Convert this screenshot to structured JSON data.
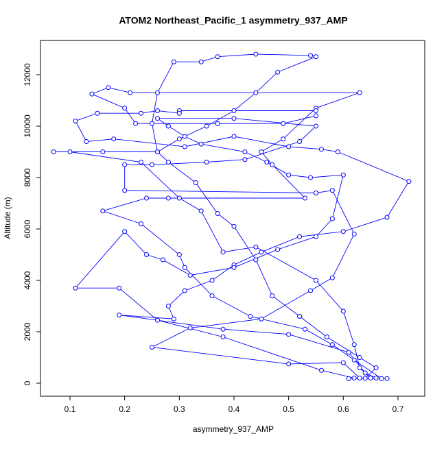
{
  "chart_data": {
    "type": "line",
    "title": "ATOM2 Northeast_Pacific_1 asymmetry_937_AMP",
    "xlabel": "asymmetry_937_AMP",
    "ylabel": "Altitude (m)",
    "color": "#0000ff",
    "marker": "circle",
    "xlim": [
      0.046,
      0.749
    ],
    "ylim": [
      -507,
      13333
    ],
    "xticks": [
      0.1,
      0.2,
      0.3,
      0.4,
      0.5,
      0.6,
      0.7
    ],
    "yticks": [
      0,
      2000,
      4000,
      6000,
      8000,
      10000,
      12000
    ],
    "x": [
      0.61,
      0.64,
      0.66,
      0.63,
      0.57,
      0.52,
      0.47,
      0.44,
      0.4,
      0.37,
      0.33,
      0.28,
      0.26,
      0.25,
      0.26,
      0.29,
      0.34,
      0.37,
      0.44,
      0.54,
      0.55,
      0.48,
      0.44,
      0.4,
      0.35,
      0.3,
      0.26,
      0.16,
      0.07,
      0.1,
      0.23,
      0.3,
      0.34,
      0.38,
      0.44,
      0.55,
      0.6,
      0.62,
      0.63,
      0.65,
      0.67,
      0.62,
      0.58,
      0.53,
      0.43,
      0.36,
      0.31,
      0.3,
      0.23,
      0.16,
      0.24,
      0.28,
      0.53,
      0.47,
      0.45,
      0.49,
      0.55,
      0.63,
      0.21,
      0.17,
      0.14,
      0.2,
      0.22,
      0.37,
      0.49,
      0.55,
      0.55,
      0.3,
      0.3,
      0.26,
      0.23,
      0.15,
      0.11,
      0.13,
      0.18,
      0.31,
      0.4,
      0.5,
      0.56,
      0.59,
      0.72,
      0.68,
      0.6,
      0.52,
      0.45,
      0.4,
      0.36,
      0.31,
      0.28,
      0.29,
      0.19,
      0.38,
      0.5,
      0.61,
      0.64,
      0.66,
      0.63,
      0.6,
      0.5,
      0.25,
      0.32,
      0.45,
      0.54,
      0.58,
      0.62,
      0.58,
      0.55,
      0.2,
      0.2,
      0.25,
      0.35,
      0.42,
      0.52,
      0.55,
      0.4,
      0.26,
      0.28,
      0.31,
      0.34,
      0.42,
      0.46,
      0.5,
      0.54,
      0.6,
      0.58,
      0.55,
      0.48,
      0.4,
      0.32,
      0.27,
      0.24,
      0.2,
      0.11,
      0.19,
      0.26,
      0.38,
      0.56,
      0.62,
      0.68
    ],
    "values": [
      180,
      190,
      600,
      1000,
      1800,
      2600,
      3400,
      4800,
      6100,
      6600,
      7800,
      8600,
      9000,
      10100,
      11300,
      12500,
      12500,
      12700,
      12800,
      12750,
      12700,
      12100,
      11300,
      10600,
      10000,
      9500,
      9000,
      9000,
      9000,
      9000,
      8600,
      7200,
      6700,
      5100,
      5300,
      4000,
      2800,
      1500,
      600,
      200,
      180,
      900,
      1500,
      2100,
      2600,
      3400,
      4500,
      5000,
      6200,
      6700,
      7200,
      7200,
      7200,
      8500,
      9000,
      9500,
      10700,
      11300,
      11300,
      11500,
      11250,
      10700,
      10100,
      10100,
      10100,
      10400,
      10600,
      10600,
      10500,
      10600,
      10500,
      10500,
      10200,
      9400,
      9500,
      9200,
      9600,
      9200,
      9100,
      9000,
      7850,
      6450,
      5900,
      5700,
      5100,
      4600,
      4000,
      3600,
      3000,
      2500,
      2650,
      2100,
      1900,
      1200,
      400,
      200,
      200,
      800,
      750,
      1400,
      2150,
      2500,
      3600,
      4100,
      5800,
      7500,
      7400,
      7500,
      8500,
      8500,
      8600,
      8700,
      9400,
      10000,
      10300,
      10300,
      10000,
      9600,
      9300,
      9000,
      8600,
      8100,
      8000,
      8100,
      6400,
      5700,
      5200,
      4500,
      4200,
      4800,
      5000,
      5900,
      3700,
      3700,
      2450,
      1800,
      500,
      200,
      180
    ]
  }
}
